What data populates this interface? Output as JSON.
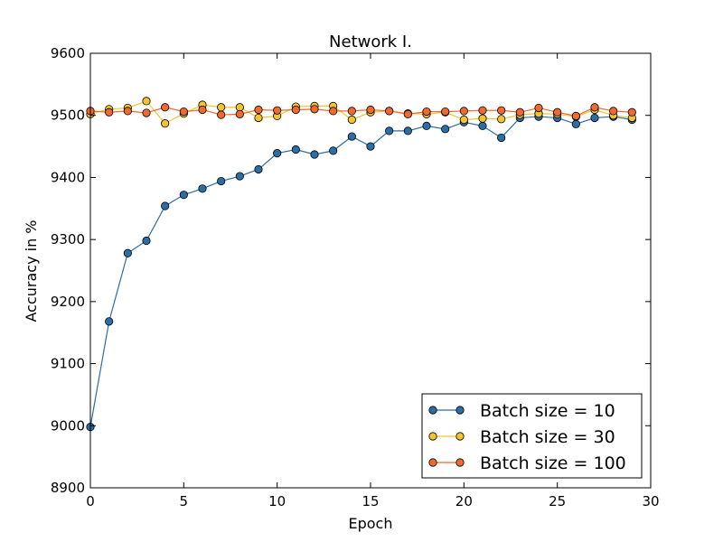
{
  "chart_data": {
    "type": "line",
    "title": "Network I.",
    "xlabel": "Epoch",
    "ylabel": "Accuracy in %",
    "xlim": [
      0,
      30
    ],
    "ylim": [
      8900,
      9600
    ],
    "x_ticks": [
      0,
      5,
      10,
      15,
      20,
      25,
      30
    ],
    "y_ticks": [
      8900,
      9000,
      9100,
      9200,
      9300,
      9400,
      9500,
      9600
    ],
    "grid": false,
    "legend_position": "bottom-right",
    "x": [
      0,
      1,
      2,
      3,
      4,
      5,
      6,
      7,
      8,
      9,
      10,
      11,
      12,
      13,
      14,
      15,
      16,
      17,
      18,
      19,
      20,
      21,
      22,
      23,
      24,
      25,
      26,
      27,
      28,
      29
    ],
    "series": [
      {
        "name": "Batch size = 10",
        "color": "#2b6ea6",
        "values": [
          8998,
          9168,
          9278,
          9298,
          9354,
          9372,
          9382,
          9394,
          9402,
          9413,
          9439,
          9445,
          9437,
          9443,
          9466,
          9450,
          9475,
          9475,
          9483,
          9478,
          9489,
          9483,
          9464,
          9496,
          9498,
          9496,
          9486,
          9496,
          9498,
          9493
        ]
      },
      {
        "name": "Batch size = 30",
        "color": "#f4c430",
        "values": [
          9502,
          9510,
          9512,
          9523,
          9487,
          9503,
          9517,
          9513,
          9513,
          9496,
          9499,
          9514,
          9515,
          9515,
          9493,
          9505,
          9507,
          9503,
          9502,
          9505,
          9493,
          9495,
          9494,
          9501,
          9503,
          9502,
          9498,
          9509,
          9500,
          9496
        ]
      },
      {
        "name": "Batch size = 100",
        "color": "#f06a30",
        "values": [
          9507,
          9505,
          9507,
          9504,
          9513,
          9506,
          9509,
          9501,
          9502,
          9509,
          9508,
          9509,
          9510,
          9507,
          9507,
          9509,
          9507,
          9502,
          9506,
          9506,
          9507,
          9508,
          9508,
          9505,
          9512,
          9505,
          9499,
          9513,
          9507,
          9505
        ]
      }
    ]
  }
}
